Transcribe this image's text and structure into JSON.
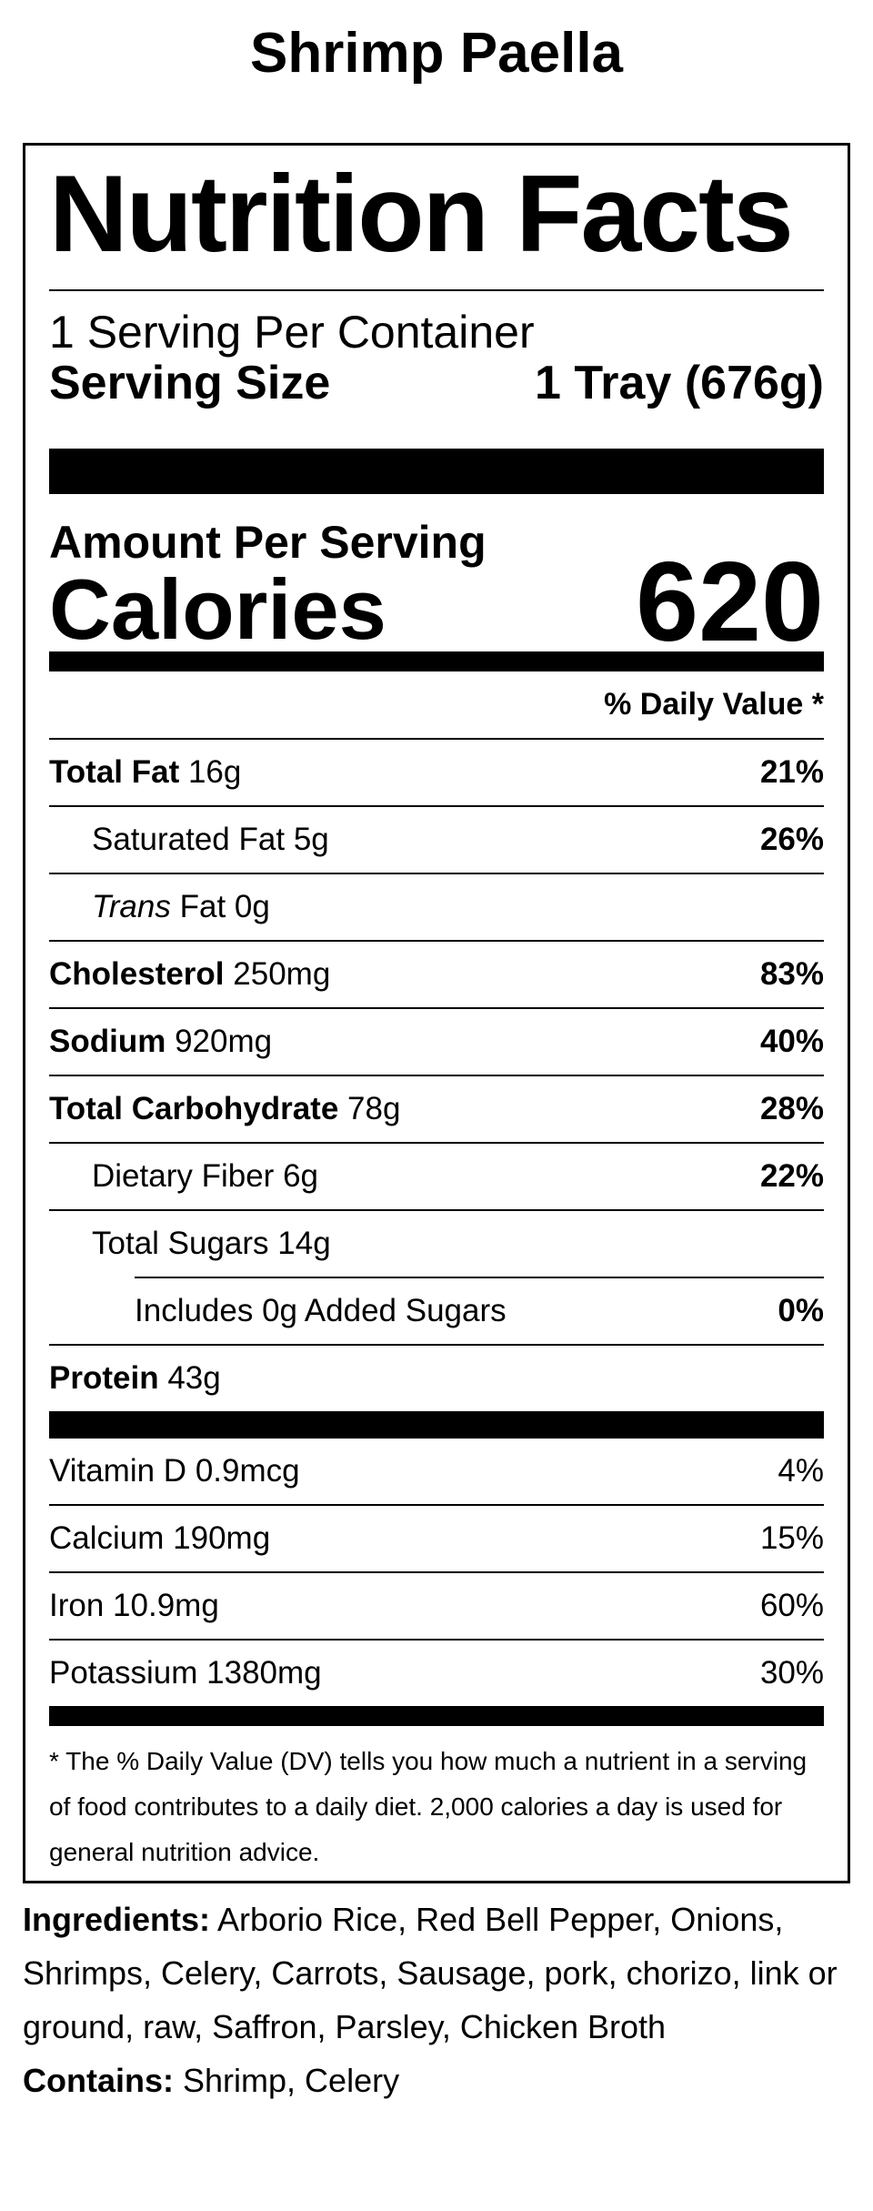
{
  "title": "Shrimp Paella",
  "label": {
    "heading": "Nutrition Facts",
    "servings_per_container": "1 Serving Per Container",
    "serving_size_label": "Serving Size",
    "serving_size_value": "1 Tray (676g)",
    "amount_per_serving": "Amount Per Serving",
    "calories_label": "Calories",
    "calories_value": "620",
    "daily_value_header": "% Daily Value *",
    "nutrients": [
      {
        "name": "Total Fat",
        "amount": "16g",
        "dv": "21%",
        "bold": true,
        "indent": 0
      },
      {
        "name": "Saturated Fat",
        "amount": "5g",
        "dv": "26%",
        "bold": false,
        "indent": 1
      },
      {
        "name_italic": "Trans",
        "name": "Fat",
        "amount": "0g",
        "bold": false,
        "indent": 1
      },
      {
        "name": "Cholesterol",
        "amount": "250mg",
        "dv": "83%",
        "bold": true,
        "indent": 0
      },
      {
        "name": "Sodium",
        "amount": "920mg",
        "dv": "40%",
        "bold": true,
        "indent": 0
      },
      {
        "name": "Total Carbohydrate",
        "amount": "78g",
        "dv": "28%",
        "bold": true,
        "indent": 0
      },
      {
        "name": "Dietary Fiber",
        "amount": "6g",
        "dv": "22%",
        "bold": false,
        "indent": 1
      },
      {
        "name": "Total Sugars",
        "amount": "14g",
        "bold": false,
        "indent": 1
      },
      {
        "name": "Includes 0g Added Sugars",
        "dv": "0%",
        "bold": false,
        "indent": 2
      },
      {
        "name": "Protein",
        "amount": "43g",
        "bold": true,
        "indent": 0
      }
    ],
    "vitamins": [
      {
        "name": "Vitamin D",
        "amount": "0.9mcg",
        "dv": "4%"
      },
      {
        "name": "Calcium",
        "amount": "190mg",
        "dv": "15%"
      },
      {
        "name": "Iron",
        "amount": "10.9mg",
        "dv": "60%"
      },
      {
        "name": "Potassium",
        "amount": "1380mg",
        "dv": "30%"
      }
    ],
    "footnote": "* The % Daily Value (DV) tells you how much a nutrient in a serving of food contributes to a daily diet. 2,000 calories a day is used for general nutrition advice."
  },
  "ingredients": {
    "label": "Ingredients:",
    "text": "Arborio Rice, Red Bell Pepper, Onions, Shrimps, Celery, Carrots, Sausage, pork, chorizo, link or ground, raw, Saffron, Parsley, Chicken Broth"
  },
  "contains": {
    "label": "Contains:",
    "text": "Shrimp, Celery"
  }
}
